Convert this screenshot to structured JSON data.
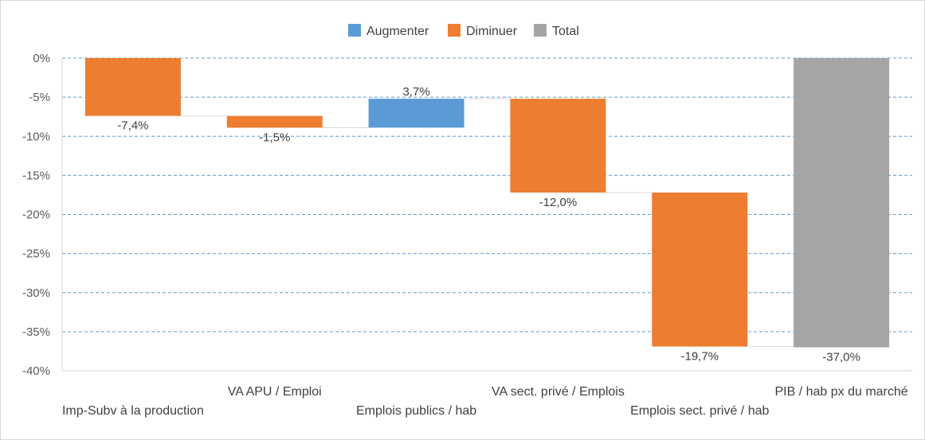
{
  "chart_data": {
    "type": "waterfall",
    "title": "",
    "legend": {
      "position": "top",
      "items": [
        {
          "label": "Augmenter",
          "color": "#5b9bd5"
        },
        {
          "label": "Diminuer",
          "color": "#ed7d31"
        },
        {
          "label": "Total",
          "color": "#a5a5a5"
        }
      ]
    },
    "categories": [
      "Imp-Subv à la production",
      "VA APU / Emploi",
      "Emplois publics / hab",
      "VA sect. privé / Emplois",
      "Emplois sect. privé / hab",
      "PIB / hab px du marché"
    ],
    "values": [
      -7.4,
      -1.5,
      3.7,
      -12.0,
      -19.7,
      -37.0
    ],
    "kinds": [
      "decrease",
      "decrease",
      "increase",
      "decrease",
      "decrease",
      "total"
    ],
    "data_labels": [
      "-7,4%",
      "-1,5%",
      "3,7%",
      "-12,0%",
      "-19,7%",
      "-37,0%"
    ],
    "ylim": [
      -40,
      0
    ],
    "yticks": [
      0,
      -5,
      -10,
      -15,
      -20,
      -25,
      -30,
      -35,
      -40
    ],
    "ytick_labels": [
      "0%",
      "-5%",
      "-10%",
      "-15%",
      "-20%",
      "-25%",
      "-30%",
      "-35%",
      "-40%"
    ],
    "grid": true,
    "xlabel": "",
    "ylabel": ""
  }
}
